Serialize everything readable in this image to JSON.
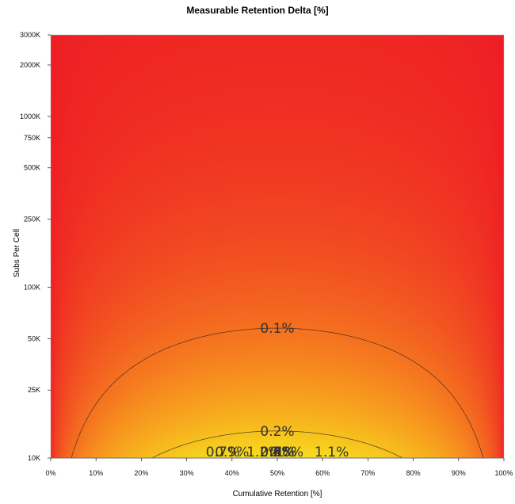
{
  "chart_data": {
    "type": "heatmap",
    "title": "Measurable Retention Delta [%]",
    "xlabel": "Cumulative Retention [%]",
    "ylabel": "Subs Per Cell",
    "x_ticks": [
      "0%",
      "10%",
      "20%",
      "30%",
      "40%",
      "50%",
      "60%",
      "70%",
      "80%",
      "90%",
      "100%"
    ],
    "x_tick_values": [
      0,
      10,
      20,
      30,
      40,
      50,
      60,
      70,
      80,
      90,
      100
    ],
    "xlim": [
      0,
      100
    ],
    "y_scale": "log",
    "ylim": [
      10000,
      3000000
    ],
    "y_ticks": [
      {
        "label": "10K",
        "value": 10000
      },
      {
        "label": "25K",
        "value": 25000
      },
      {
        "label": "50K",
        "value": 50000
      },
      {
        "label": "100K",
        "value": 100000
      },
      {
        "label": "250K",
        "value": 250000
      },
      {
        "label": "500K",
        "value": 500000
      },
      {
        "label": "750K",
        "value": 750000
      },
      {
        "label": "1000K",
        "value": 1000000
      },
      {
        "label": "2000K",
        "value": 2000000
      },
      {
        "label": "3000K",
        "value": 3000000
      }
    ],
    "colorscale": [
      "#ee1c24",
      "#f7931e",
      "#f7e81e",
      "#8cc63f",
      "#5cb85c",
      "#29abe2",
      "#2e3192",
      "#e8177d"
    ],
    "contours": [
      {
        "label": "0.1%",
        "value": 0.1,
        "label_x": 50
      },
      {
        "label": "0.2%",
        "value": 0.2,
        "label_x": 50
      },
      {
        "label": "0.3%",
        "value": 0.3,
        "label_x": 50
      },
      {
        "label": "0.4%",
        "value": 0.4,
        "label_x": 50
      },
      {
        "label": "0.5%",
        "value": 0.5,
        "label_x": 50
      },
      {
        "label": "0.6%",
        "value": 0.6,
        "label_x": 50
      },
      {
        "label": "0.7%",
        "value": 0.7,
        "label_x": 38
      },
      {
        "label": "0.8%",
        "value": 0.8,
        "label_x": 52
      },
      {
        "label": "0.9%",
        "value": 0.9,
        "label_x": 40
      },
      {
        "label": "1%",
        "value": 1.0,
        "label_x": 52
      },
      {
        "label": "1.1%",
        "value": 1.1,
        "label_x": 62
      },
      {
        "label": "1.2%",
        "value": 1.2,
        "label_x": 47
      }
    ]
  }
}
